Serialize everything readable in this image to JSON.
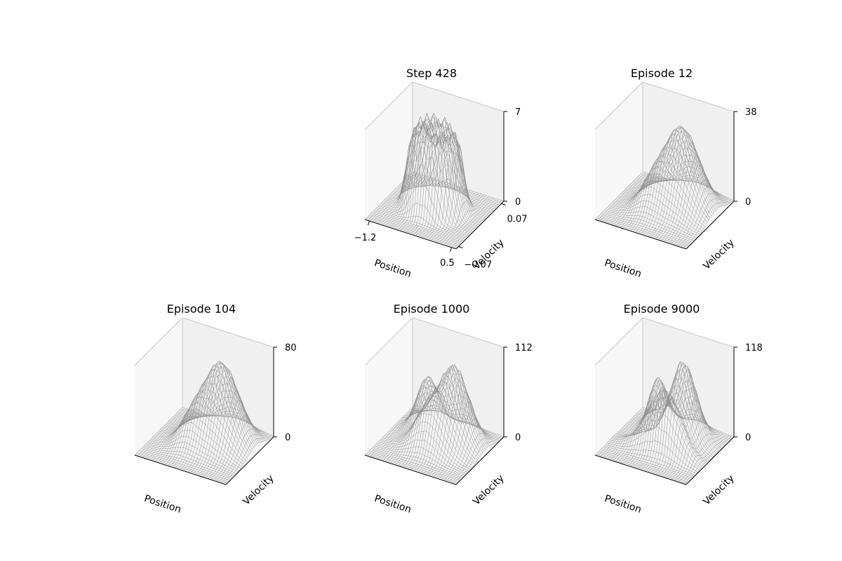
{
  "chart_data": [
    {
      "type": "surface",
      "title": "Step 428",
      "xlabel": "Position",
      "ylabel": "Velocity",
      "x_ticks": [
        "−1.2",
        "0.5"
      ],
      "y_ticks": [
        "−0.07",
        "0.07"
      ],
      "z_ticks": [
        "0",
        "7"
      ],
      "xlim": [
        -1.2,
        0.5
      ],
      "ylim": [
        -0.07,
        0.07
      ],
      "zlim": [
        0,
        7
      ],
      "shape": "plateau"
    },
    {
      "type": "surface",
      "title": "Episode 12",
      "xlabel": "Position",
      "ylabel": "Velocity",
      "x_ticks": [],
      "y_ticks": [],
      "z_ticks": [
        "0",
        "38"
      ],
      "zlim": [
        0,
        38
      ],
      "shape": "peak"
    },
    {
      "type": "surface",
      "title": "Episode 104",
      "xlabel": "Position",
      "ylabel": "Velocity",
      "x_ticks": [],
      "y_ticks": [],
      "z_ticks": [
        "0",
        "80"
      ],
      "zlim": [
        0,
        80
      ],
      "shape": "peak"
    },
    {
      "type": "surface",
      "title": "Episode 1000",
      "xlabel": "Position",
      "ylabel": "Velocity",
      "x_ticks": [],
      "y_ticks": [],
      "z_ticks": [
        "0",
        "112"
      ],
      "zlim": [
        0,
        112
      ],
      "shape": "ridge"
    },
    {
      "type": "surface",
      "title": "Episode 9000",
      "xlabel": "Position",
      "ylabel": "Velocity",
      "x_ticks": [],
      "y_ticks": [],
      "z_ticks": [
        "0",
        "118"
      ],
      "zlim": [
        0,
        118
      ],
      "shape": "spiral"
    }
  ]
}
